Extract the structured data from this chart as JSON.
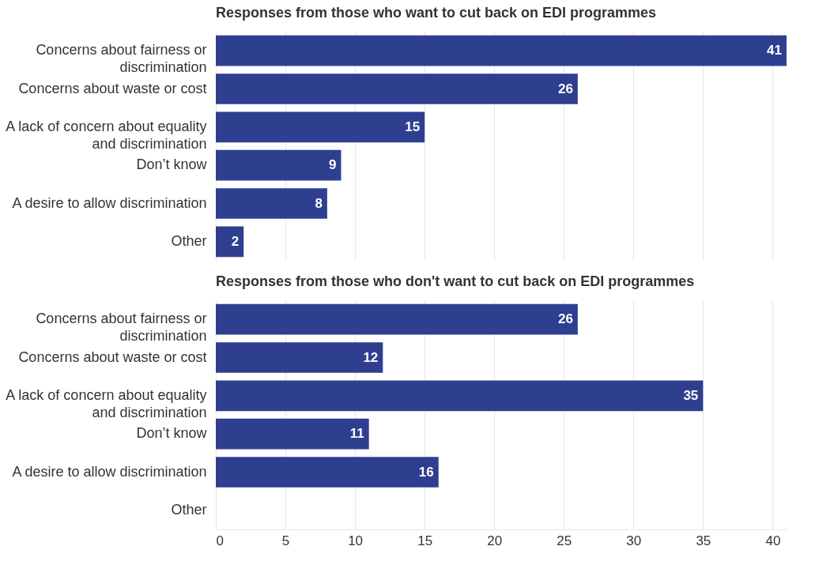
{
  "chart_data": [
    {
      "type": "bar",
      "orientation": "horizontal",
      "title": "Responses from those who want to cut back on EDI programmes",
      "categories": [
        "Concerns about fairness or\ndiscrimination",
        "Concerns about waste or cost",
        "A lack of concern about equality\nand discrimination",
        "Don’t know",
        "A desire to allow discrimination",
        "Other"
      ],
      "values": [
        41,
        26,
        15,
        9,
        8,
        2
      ],
      "color": "#2f3f8f",
      "data_labels": true,
      "xlim": [
        0,
        41
      ],
      "xticks": [
        0,
        5,
        10,
        15,
        20,
        25,
        30,
        35,
        40
      ],
      "grid": "x",
      "tick_labels": "y"
    },
    {
      "type": "bar",
      "orientation": "horizontal",
      "title": "Responses from those who don't want to cut back on EDI programmes",
      "categories": [
        "Concerns about fairness or\ndiscrimination",
        "Concerns about waste or cost",
        "A lack of concern about equality\nand discrimination",
        "Don’t know",
        "A desire to allow discrimination",
        "Other"
      ],
      "values": [
        26,
        12,
        35,
        11,
        16,
        null
      ],
      "color": "#2f3f8f",
      "data_labels": true,
      "xlim": [
        0,
        41
      ],
      "xticks": [
        0,
        5,
        10,
        15,
        20,
        25,
        30,
        35,
        40
      ],
      "grid": "x"
    }
  ]
}
